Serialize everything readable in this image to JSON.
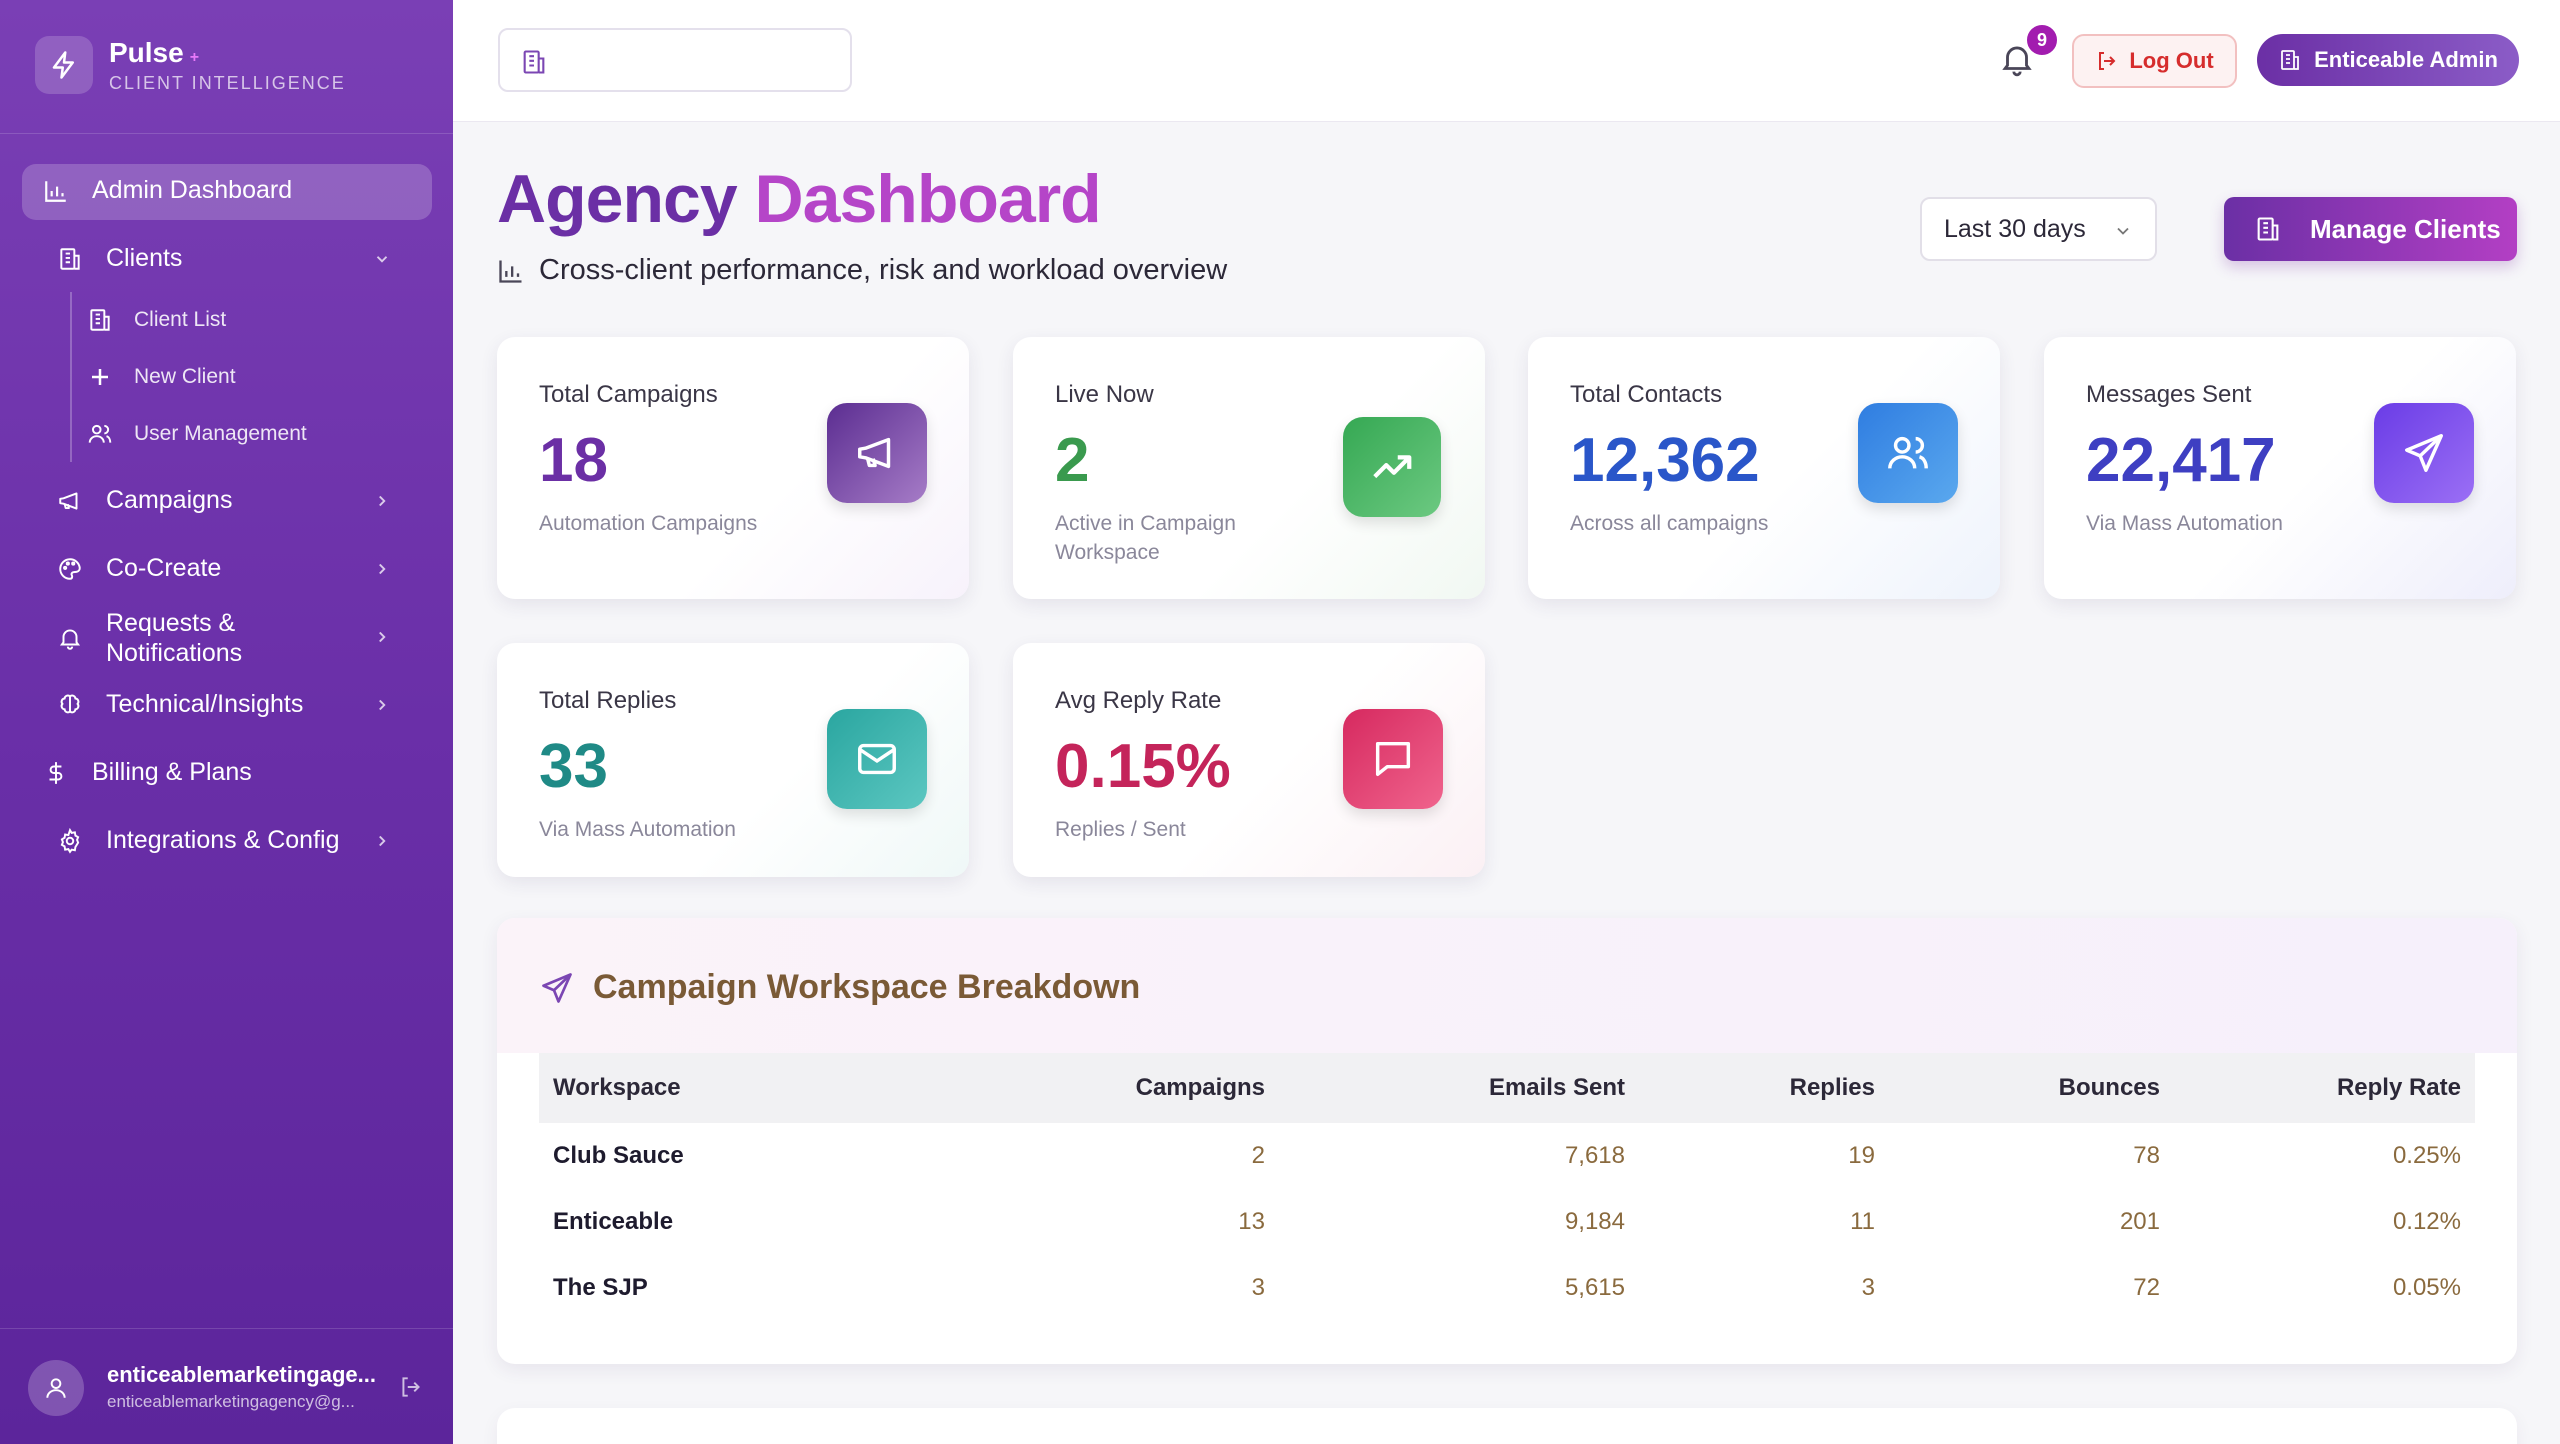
{
  "brand": {
    "name": "Pulse",
    "plus": "+",
    "subtitle": "CLIENT INTELLIGENCE"
  },
  "sidebar": {
    "items": [
      {
        "label": "Admin Dashboard",
        "icon": "bar-chart-icon",
        "active": true
      },
      {
        "label": "Clients",
        "icon": "building-icon",
        "expanded": true
      },
      {
        "label": "Client List",
        "icon": "building-icon",
        "sub": true
      },
      {
        "label": "New Client",
        "icon": "plus-icon",
        "sub": true
      },
      {
        "label": "User Management",
        "icon": "users-icon",
        "sub": true
      },
      {
        "label": "Campaigns",
        "icon": "megaphone-icon"
      },
      {
        "label": "Co-Create",
        "icon": "palette-icon"
      },
      {
        "label": "Requests &",
        "label2": "Notifications",
        "icon": "bell-icon"
      },
      {
        "label": "Technical/Insights",
        "icon": "brain-icon"
      },
      {
        "label": "Billing & Plans",
        "icon": "dollar-icon"
      },
      {
        "label": "Integrations & Config",
        "icon": "gear-icon"
      }
    ],
    "user": {
      "name": "enticeablemarketingage...",
      "email": "enticeablemarketingagency@g..."
    }
  },
  "topbar": {
    "notifications": "9",
    "logout_label": "Log Out",
    "admin_label": "Enticeable Admin"
  },
  "header": {
    "title_a": "Agency",
    "title_b": "Dashboard",
    "subtitle": "Cross-client performance, risk and workload overview",
    "range": "Last 30 days",
    "manage_label": "Manage Clients"
  },
  "cards": [
    {
      "label": "Total Campaigns",
      "value": "18",
      "sub": "Automation Campaigns",
      "color": "#6b2fa5",
      "icon": "megaphone-icon"
    },
    {
      "label": "Live Now",
      "value": "2",
      "sub": "Active in Campaign Workspace",
      "color": "#3a9a4e",
      "icon": "trend-up-icon"
    },
    {
      "label": "Total Contacts",
      "value": "12,362",
      "sub": "Across all campaigns",
      "color": "#2a56c9",
      "icon": "users-icon"
    },
    {
      "label": "Messages Sent",
      "value": "22,417",
      "sub": "Via Mass Automation",
      "color": "#3e3fc2",
      "icon": "send-icon"
    },
    {
      "label": "Total Replies",
      "value": "33",
      "sub": "Via Mass Automation",
      "color": "#1f8a86",
      "icon": "mail-icon"
    },
    {
      "label": "Avg Reply Rate",
      "value": "0.15%",
      "sub": "Replies / Sent",
      "color": "#c4245a",
      "icon": "message-icon"
    }
  ],
  "breakdown": {
    "title": "Campaign Workspace Breakdown",
    "columns": [
      "Workspace",
      "Campaigns",
      "Emails Sent",
      "Replies",
      "Bounces",
      "Reply Rate"
    ],
    "rows": [
      [
        "Club Sauce",
        "2",
        "7,618",
        "19",
        "78",
        "0.25%"
      ],
      [
        "Enticeable",
        "13",
        "9,184",
        "11",
        "201",
        "0.12%"
      ],
      [
        "The SJP",
        "3",
        "5,615",
        "3",
        "72",
        "0.05%"
      ]
    ]
  }
}
